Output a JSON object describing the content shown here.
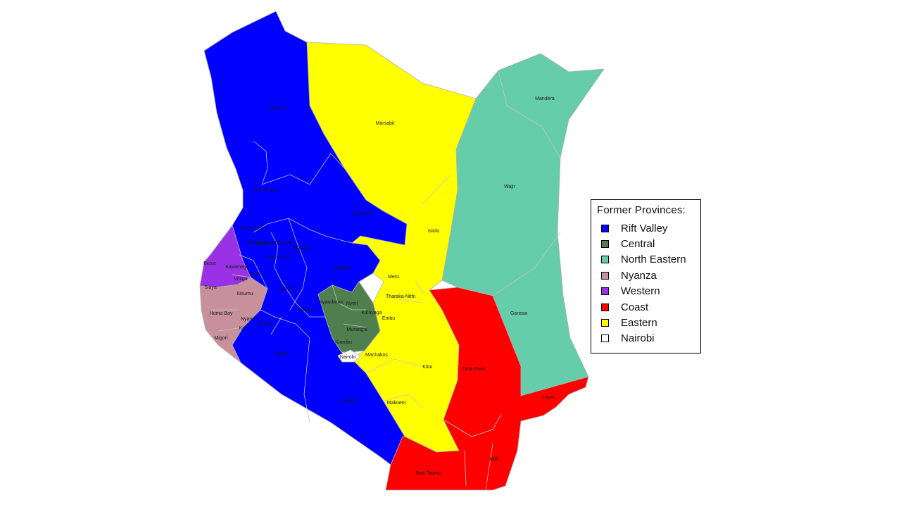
{
  "map": {
    "legend_title": "Former Provinces:",
    "provinces": [
      {
        "name": "Rift Valley",
        "color": "#0000ff"
      },
      {
        "name": "Central",
        "color": "#4f7f4f"
      },
      {
        "name": "North Eastern",
        "color": "#66cdaa"
      },
      {
        "name": "Nyanza",
        "color": "#c8909a"
      },
      {
        "name": "Western",
        "color": "#9932e6"
      },
      {
        "name": "Coast",
        "color": "#ff0000"
      },
      {
        "name": "Eastern",
        "color": "#ffff00"
      },
      {
        "name": "Nairobi",
        "color": "#ffffff"
      }
    ],
    "county_labels": [
      "Turkana",
      "Marsabit",
      "Mandera",
      "Wajir",
      "West Pokot",
      "Samburu",
      "Trans Nzoia",
      "Bungoma",
      "Elgeyo-Marakwet",
      "Baringo",
      "Isiolo",
      "Busia",
      "Kakamega",
      "Vihiga",
      "Nandi",
      "Uasin Gishu",
      "Laikipia",
      "Meru",
      "Siaya",
      "Kisumu",
      "Kericho",
      "Nakuru",
      "Nyandarua",
      "Nyeri",
      "Tharaka-Nithi",
      "Garissa",
      "Homa Bay",
      "Nyamira",
      "Kisii",
      "Bomet",
      "Kirinyaga",
      "Embu",
      "Murang'a",
      "Migori",
      "Kiambu",
      "Narok",
      "Nairobi",
      "Machakos",
      "Kitui",
      "Tana River",
      "Lamu",
      "Kajiado",
      "Makueni",
      "Kilifi",
      "Taita Taveta"
    ]
  }
}
